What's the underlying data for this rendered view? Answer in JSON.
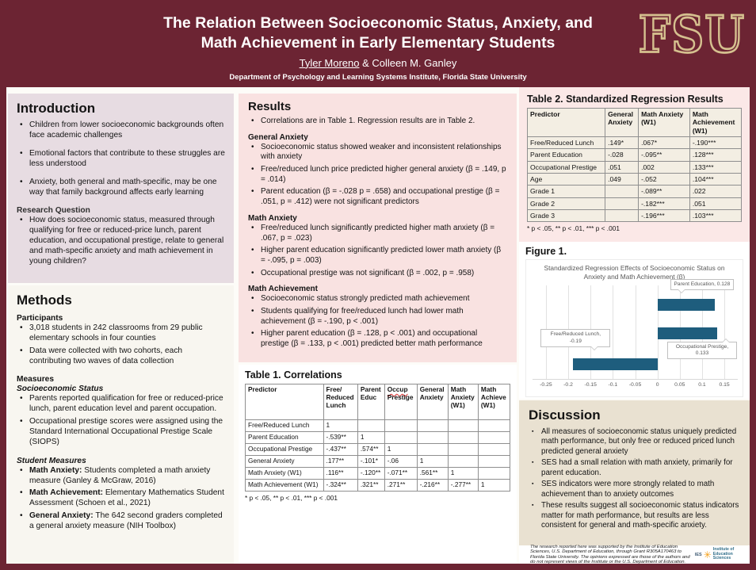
{
  "header": {
    "title_line1": "The Relation Between Socioeconomic Status, Anxiety, and",
    "title_line2": "Math Achievement in Early Elementary Students",
    "author1": "Tyler Moreno",
    "author_sep": " & ",
    "author2": "Colleen M. Ganley",
    "department": "Department of Psychology and Learning Systems Institute, Florida State University",
    "logo_text": "FSU"
  },
  "introduction": {
    "heading": "Introduction",
    "bullets": [
      "Children from lower socioeconomic backgrounds often face academic challenges",
      "Emotional factors that contribute to these struggles are less understood",
      "Anxiety, both general and math-specific, may be one way that family background affects early learning"
    ],
    "subheading": "Research Question",
    "question_bullets": [
      "How does socioeconomic status, measured through qualifying for free or reduced-price lunch, parent education, and occupational prestige, relate to general and math-specific anxiety and math achievement in young children?"
    ]
  },
  "methods": {
    "heading": "Methods",
    "participants_label": "Participants",
    "participants_bullets": [
      "3,018 students in 242 classrooms from 29 public elementary schools in four counties",
      "Data were collected with two cohorts, each contributing two waves of data collection"
    ],
    "measures_label": "Measures",
    "ses_label": "Socioeconomic Status",
    "ses_bullets": [
      "Parents reported qualification for free or reduced-price lunch, parent education level and parent occupation.",
      "Occupational prestige scores were assigned using the Standard International Occupational Prestige Scale (SIOPS)"
    ],
    "student_label": "Student Measures",
    "student_bullets": [
      {
        "lead": "Math Anxiety:",
        "text": "Students completed a math anxiety measure (Ganley & McGraw, 2016)"
      },
      {
        "lead": "Math Achievement:",
        "text": "Elementary Mathematics Student Assessment (Schoen et al., 2021)"
      },
      {
        "lead": "General Anxiety:",
        "text": "The 642 second graders completed a general anxiety measure (NIH Toolbox)"
      }
    ]
  },
  "results": {
    "heading": "Results",
    "intro_bullets": [
      "Correlations are in Table 1. Regression results are in Table 2."
    ],
    "sections": [
      {
        "heading": "General Anxiety",
        "bullets": [
          "Socioeconomic status showed weaker and inconsistent relationships with anxiety",
          "Free/reduced lunch price predicted higher general anxiety (β = .149, p = .014)",
          "Parent education (β = -.028 p = .658) and occupational prestige (β = .051, p = .412) were not significant predictors"
        ]
      },
      {
        "heading": "Math Anxiety",
        "bullets": [
          "Free/reduced lunch significantly predicted higher math anxiety (β = .067, p = .023)",
          "Higher parent education significantly predicted lower math anxiety (β = -.095, p = .003)",
          "Occupational prestige was not significant (β = .002, p = .958)"
        ]
      },
      {
        "heading": "Math Achievement",
        "bullets": [
          "Socioeconomic status strongly predicted math achievement",
          "Students qualifying for free/reduced lunch had lower math achievement (β = -.190, p < .001)",
          "Higher parent education (β = .128, p < .001) and occupational prestige (β = .133, p < .001) predicted better math performance"
        ]
      }
    ]
  },
  "table1": {
    "title": "Table 1. Correlations",
    "misspelled_word": "Occup",
    "col_headers": [
      "Predictor",
      "Free/\nReduced\nLunch",
      "Parent\nEduc",
      "Occup\nPrestige",
      "General\nAnxiety",
      "Math\nAnxiety\n(W1)",
      "Math\nAchieve\n(W1)"
    ],
    "rows": [
      [
        "Free/Reduced Lunch",
        "1",
        "",
        "",
        "",
        "",
        ""
      ],
      [
        "Parent Education",
        "-.539**",
        "1",
        "",
        "",
        "",
        ""
      ],
      [
        "Occupational Prestige",
        "-.437**",
        ".574**",
        "1",
        "",
        "",
        ""
      ],
      [
        "General Anxiety",
        ".177**",
        "-.101*",
        "-.06",
        "1",
        "",
        ""
      ],
      [
        "Math Anxiety (W1)",
        ".116**",
        "-.120**",
        "-.071**",
        ".561**",
        "1",
        ""
      ],
      [
        "Math Achievement (W1)",
        "-.324**",
        ".321**",
        ".271**",
        "-.216**",
        "-.277**",
        "1"
      ]
    ],
    "footnote": "* p < .05, ** p < .01, *** p < .001"
  },
  "table2": {
    "title": "Table 2. Standardized Regression Results",
    "col_headers": [
      "Predictor",
      "General\nAnxiety",
      "Math Anxiety\n(W1)",
      "Math\nAchievement\n(W1)"
    ],
    "rows": [
      [
        "Free/Reduced Lunch",
        ".149*",
        ".067*",
        "-.190***"
      ],
      [
        "Parent Education",
        "-.028",
        "-.095**",
        ".128***"
      ],
      [
        "Occupational Prestige",
        ".051",
        ".002",
        ".133***"
      ],
      [
        "Age",
        ".049",
        "-.052",
        ".104***"
      ],
      [
        "Grade 1",
        "",
        "-.089**",
        ".022"
      ],
      [
        "Grade 2",
        "",
        "-.182***",
        ".051"
      ],
      [
        "Grade 3",
        "",
        "-.196***",
        ".103***"
      ]
    ],
    "footnote": "* p < .05, ** p < .01, *** p < .001"
  },
  "figure": {
    "heading": "Figure 1."
  },
  "chart_data": {
    "type": "bar",
    "orientation": "horizontal",
    "title": "Standardized Regression Effects of Socioeconomic Status on Anxiety and Math Achievement (β)",
    "categories": [
      "Parent Education",
      "Occupational Prestige",
      "Free/Reduced Lunch"
    ],
    "values": [
      0.128,
      0.133,
      -0.19
    ],
    "data_labels": [
      "Parent Education, 0.128",
      "Occupational Prestige, 0.133",
      "Free/Reduced Lunch, -0.19"
    ],
    "xlim": [
      -0.28,
      0.18
    ],
    "xticks": [
      -0.25,
      -0.2,
      -0.15,
      -0.1,
      -0.05,
      0,
      0.05,
      0.1,
      0.15
    ],
    "xtick_labels": [
      "-0.25",
      "-0.2",
      "-0.15",
      "-0.1",
      "-0.05",
      "0",
      "0.05",
      "0.1",
      "0.15"
    ],
    "bar_color": "#1e5d7d",
    "grid": true,
    "legend": false
  },
  "discussion": {
    "heading": "Discussion",
    "bullets": [
      "All measures of socioeconomic status uniquely predicted math performance, but only free or reduced priced lunch predicted general anxiety",
      "SES had a small relation with math anxiety, primarily for parent education.",
      "SES indicators were more strongly related to math achievement than to anxiety outcomes",
      "These results suggest all socioeconomic status indicators matter for math performance, but results are less consistent for general and math-specific anxiety."
    ]
  },
  "footer": {
    "text": "The research reported here was supported by the Institute of Education  Sciences, U.S. Department of Education, through Grant R305A170463 to Florida State University. The opinions expressed are those of the authors  and do not represent views of the Institute or the U.S. Department of  Education.",
    "ies_abbr": "IES",
    "ies_org_line1": "Institute of",
    "ies_org_line2": "Education Sciences"
  },
  "colors": {
    "garnet": "#6c2433",
    "gold": "#d5c08f",
    "intro_bg": "#e7dce2",
    "results_bg": "#f9e2e1",
    "table2_bg": "#fbe8e7",
    "discussion_bg": "#e9e1d1",
    "bar": "#1e5d7d"
  }
}
